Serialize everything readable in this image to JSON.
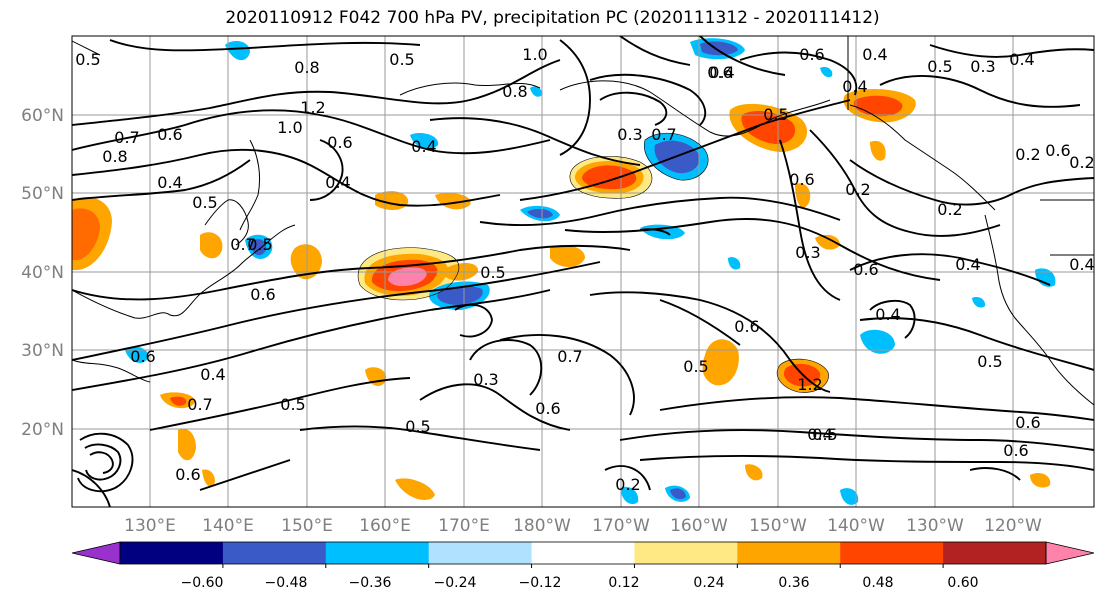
{
  "title": "2020110912 F042 700 hPa PV, precipitation PC (2020111312 - 2020111412)",
  "lat_labels": [
    "60°N",
    "50°N",
    "40°N",
    "30°N",
    "20°N"
  ],
  "lon_labels": [
    "130°E",
    "140°E",
    "150°E",
    "160°E",
    "170°E",
    "180°W",
    "170°W",
    "160°W",
    "150°W",
    "140°W",
    "130°W",
    "120°W"
  ],
  "contour_labels": [
    "0.5",
    "0.8",
    "0.5",
    "0.7",
    "0.6",
    "0.8",
    "0.7",
    "0.6",
    "0.4",
    "0.5",
    "0.4",
    "1.2",
    "1.0",
    "0.6",
    "0.4",
    "0.5",
    "1.0",
    "0.8",
    "0.6",
    "0.4",
    "0.5",
    "0.6",
    "0.3",
    "0.7",
    "0.6",
    "0.5",
    "0.2",
    "0.5",
    "0.6",
    "0.3",
    "0.6",
    "0.4",
    "0.5",
    "0.6",
    "0.5",
    "0.6",
    "0.4",
    "0.4",
    "0.2",
    "0.6",
    "0.2",
    "0.4",
    "0.4",
    "0.3",
    "0.5",
    "0.6",
    "0.4",
    "0.6",
    "0.2",
    "0.2",
    "0.4",
    "0.7",
    "0.3",
    "0.5",
    "0.6",
    "1.2",
    "0.7",
    "0.5",
    "0.4"
  ],
  "colorbar": {
    "ticks": [
      "−0.60",
      "−0.48",
      "−0.36",
      "−0.24",
      "−0.12",
      "0.12",
      "0.24",
      "0.36",
      "0.48",
      "0.60"
    ],
    "colors": [
      "#9932cc",
      "#000080",
      "#3a5bc7",
      "#00bfff",
      "#b0e2ff",
      "#ffffff",
      "#ffe985",
      "#ffa500",
      "#ff4500",
      "#b22222",
      "#ff82ab"
    ]
  }
}
